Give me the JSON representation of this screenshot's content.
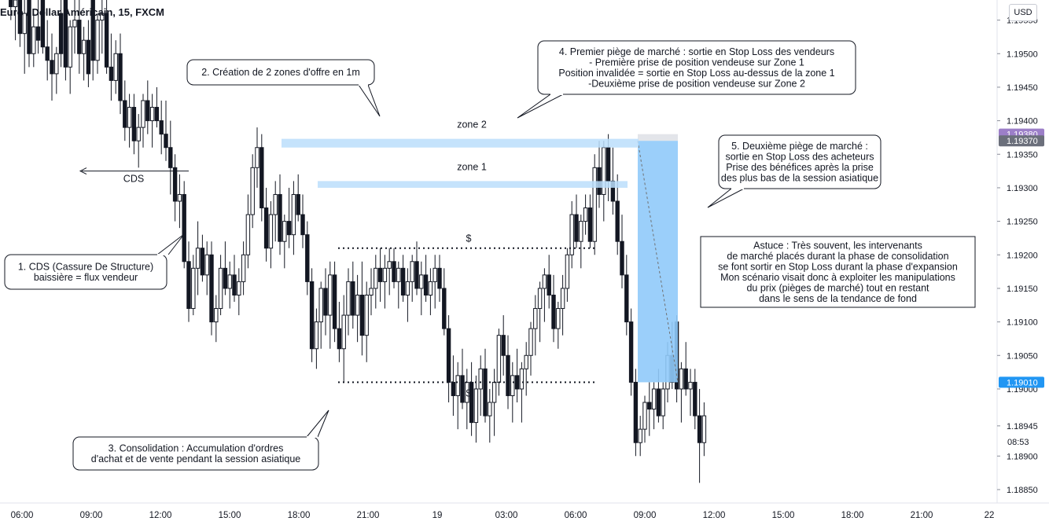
{
  "header": {
    "symbol_title": "Euro / Dollar Américain, 15, FXCM",
    "currency_button": "USD"
  },
  "countdown": "08:53",
  "chart_data": {
    "type": "candlestick",
    "y_axis": {
      "ticks": [
        "1.19550",
        "1.19500",
        "1.19450",
        "1.19400",
        "1.19350",
        "1.19300",
        "1.19250",
        "1.19200",
        "1.19150",
        "1.19100",
        "1.19050",
        "1.19000",
        "1.18945",
        "1.18900",
        "1.18850"
      ],
      "ylim": [
        1.1883,
        1.1958
      ]
    },
    "x_axis": {
      "ticks": [
        "06:00",
        "09:00",
        "12:00",
        "15:00",
        "18:00",
        "21:00",
        "19",
        "03:00",
        "06:00",
        "09:00",
        "12:00",
        "15:00",
        "18:00",
        "21:00",
        "22"
      ]
    },
    "price_tags": [
      {
        "value": "1.19380",
        "color": "#9c7fc8"
      },
      {
        "value": "1.19370",
        "color": "#6b6f7b"
      },
      {
        "value": "1.19010",
        "color": "#2196f3"
      }
    ],
    "candles": [
      [
        1.1961,
        1.1966,
        1.1958,
        1.196
      ],
      [
        1.196,
        1.1965,
        1.1955,
        1.1957
      ],
      [
        1.1957,
        1.1962,
        1.1952,
        1.1958
      ],
      [
        1.1958,
        1.1961,
        1.1951,
        1.1953
      ],
      [
        1.1953,
        1.1958,
        1.1947,
        1.1956
      ],
      [
        1.196,
        1.1962,
        1.1948,
        1.195
      ],
      [
        1.195,
        1.1956,
        1.1948,
        1.1954
      ],
      [
        1.1954,
        1.1959,
        1.195,
        1.1952
      ],
      [
        1.1958,
        1.196,
        1.195,
        1.1951
      ],
      [
        1.1951,
        1.1955,
        1.1946,
        1.1949
      ],
      [
        1.1949,
        1.1953,
        1.1943,
        1.1947
      ],
      [
        1.1947,
        1.1951,
        1.1944,
        1.195
      ],
      [
        1.1956,
        1.1962,
        1.1948,
        1.195
      ],
      [
        1.196,
        1.1963,
        1.1946,
        1.1948
      ],
      [
        1.1948,
        1.1955,
        1.1944,
        1.1954
      ],
      [
        1.1954,
        1.1958,
        1.195,
        1.1955
      ],
      [
        1.1955,
        1.1958,
        1.1947,
        1.195
      ],
      [
        1.195,
        1.1954,
        1.1946,
        1.1952
      ],
      [
        1.1952,
        1.1955,
        1.1945,
        1.1947
      ],
      [
        1.1965,
        1.1968,
        1.1946,
        1.1949
      ],
      [
        1.1949,
        1.1956,
        1.1947,
        1.1955
      ],
      [
        1.1955,
        1.1958,
        1.195,
        1.1956
      ],
      [
        1.1956,
        1.1959,
        1.1947,
        1.1948
      ],
      [
        1.1948,
        1.1953,
        1.1943,
        1.1946
      ],
      [
        1.1946,
        1.1952,
        1.1944,
        1.195
      ],
      [
        1.195,
        1.1953,
        1.1941,
        1.1943
      ],
      [
        1.1943,
        1.1946,
        1.1937,
        1.1939
      ],
      [
        1.1939,
        1.1944,
        1.1936,
        1.1942
      ],
      [
        1.1942,
        1.1944,
        1.1935,
        1.1937
      ],
      [
        1.1937,
        1.1941,
        1.1933,
        1.1939
      ],
      [
        1.1939,
        1.1944,
        1.1936,
        1.1943
      ],
      [
        1.1943,
        1.1946,
        1.1938,
        1.194
      ],
      [
        1.194,
        1.1944,
        1.1936,
        1.1942
      ],
      [
        1.1942,
        1.1945,
        1.1939,
        1.194
      ],
      [
        1.194,
        1.1943,
        1.1935,
        1.1938
      ],
      [
        1.1938,
        1.1943,
        1.1934,
        1.1936
      ],
      [
        1.1936,
        1.194,
        1.1929,
        1.1933
      ],
      [
        1.1933,
        1.1935,
        1.1925,
        1.1928
      ],
      [
        1.1928,
        1.1932,
        1.1924,
        1.1929
      ],
      [
        1.1929,
        1.1931,
        1.1918,
        1.1919
      ],
      [
        1.1919,
        1.1922,
        1.191,
        1.1912
      ],
      [
        1.1912,
        1.192,
        1.1911,
        1.1918
      ],
      [
        1.1918,
        1.1925,
        1.1914,
        1.1921
      ],
      [
        1.1921,
        1.1923,
        1.1916,
        1.1917
      ],
      [
        1.1917,
        1.1922,
        1.1914,
        1.192
      ],
      [
        1.192,
        1.1922,
        1.1908,
        1.191
      ],
      [
        1.191,
        1.1914,
        1.1907,
        1.1912
      ],
      [
        1.1912,
        1.192,
        1.1911,
        1.1918
      ],
      [
        1.1918,
        1.1922,
        1.1914,
        1.1915
      ],
      [
        1.1915,
        1.1919,
        1.1912,
        1.1917
      ],
      [
        1.1917,
        1.192,
        1.1913,
        1.1914
      ],
      [
        1.1914,
        1.1918,
        1.1911,
        1.1916
      ],
      [
        1.1916,
        1.1922,
        1.1914,
        1.192
      ],
      [
        1.192,
        1.1929,
        1.1918,
        1.1926
      ],
      [
        1.1926,
        1.1935,
        1.1924,
        1.1933
      ],
      [
        1.1933,
        1.1939,
        1.193,
        1.1936
      ],
      [
        1.1936,
        1.1938,
        1.1925,
        1.1927
      ],
      [
        1.1927,
        1.193,
        1.1919,
        1.1921
      ],
      [
        1.1921,
        1.1928,
        1.1918,
        1.1926
      ],
      [
        1.1926,
        1.1931,
        1.1922,
        1.1929
      ],
      [
        1.1929,
        1.1932,
        1.192,
        1.1922
      ],
      [
        1.1922,
        1.1926,
        1.1918,
        1.1925
      ],
      [
        1.1925,
        1.193,
        1.1921,
        1.1923
      ],
      [
        1.1923,
        1.1931,
        1.192,
        1.1929
      ],
      [
        1.1929,
        1.1932,
        1.1925,
        1.1926
      ],
      [
        1.1926,
        1.1929,
        1.1921,
        1.1923
      ],
      [
        1.1923,
        1.1925,
        1.1914,
        1.1916
      ],
      [
        1.1916,
        1.1918,
        1.1904,
        1.1906
      ],
      [
        1.1906,
        1.1912,
        1.1903,
        1.191
      ],
      [
        1.191,
        1.1916,
        1.1906,
        1.1915
      ],
      [
        1.1915,
        1.1918,
        1.1908,
        1.1911
      ],
      [
        1.1911,
        1.1919,
        1.1906,
        1.1917
      ],
      [
        1.1917,
        1.1919,
        1.1907,
        1.1909
      ],
      [
        1.1909,
        1.1913,
        1.1904,
        1.1906
      ],
      [
        1.1906,
        1.1914,
        1.1901,
        1.1911
      ],
      [
        1.1911,
        1.1918,
        1.1908,
        1.1916
      ],
      [
        1.1916,
        1.1919,
        1.1909,
        1.1911
      ],
      [
        1.1911,
        1.1917,
        1.1907,
        1.1914
      ],
      [
        1.1914,
        1.1919,
        1.1905,
        1.1908
      ],
      [
        1.1908,
        1.1916,
        1.1904,
        1.1914
      ],
      [
        1.1914,
        1.1918,
        1.1911,
        1.1915
      ],
      [
        1.1915,
        1.192,
        1.1912,
        1.1918
      ],
      [
        1.1918,
        1.1921,
        1.1913,
        1.1916
      ],
      [
        1.1916,
        1.192,
        1.1912,
        1.1918
      ],
      [
        1.1918,
        1.1921,
        1.1914,
        1.1919
      ],
      [
        1.1919,
        1.1921,
        1.1915,
        1.1916
      ],
      [
        1.1916,
        1.1919,
        1.1912,
        1.1918
      ],
      [
        1.1918,
        1.192,
        1.1913,
        1.1914
      ],
      [
        1.1914,
        1.1918,
        1.191,
        1.1916
      ],
      [
        1.1916,
        1.192,
        1.1913,
        1.1919
      ],
      [
        1.1919,
        1.1922,
        1.1914,
        1.1915
      ],
      [
        1.1915,
        1.1919,
        1.1911,
        1.1917
      ],
      [
        1.1917,
        1.192,
        1.1913,
        1.1914
      ],
      [
        1.1914,
        1.1918,
        1.1911,
        1.1916
      ],
      [
        1.1916,
        1.192,
        1.1912,
        1.1918
      ],
      [
        1.1918,
        1.192,
        1.1913,
        1.1915
      ],
      [
        1.1915,
        1.1918,
        1.1908,
        1.1909
      ],
      [
        1.1909,
        1.1911,
        1.1898,
        1.1901
      ],
      [
        1.1901,
        1.1905,
        1.1896,
        1.1899
      ],
      [
        1.1899,
        1.1904,
        1.1894,
        1.1902
      ],
      [
        1.1902,
        1.1906,
        1.1897,
        1.1898
      ],
      [
        1.1898,
        1.1903,
        1.1894,
        1.1901
      ],
      [
        1.1901,
        1.1904,
        1.1893,
        1.1895
      ],
      [
        1.1895,
        1.1902,
        1.1892,
        1.19
      ],
      [
        1.19,
        1.1905,
        1.1896,
        1.1903
      ],
      [
        1.1903,
        1.1906,
        1.1895,
        1.1896
      ],
      [
        1.1896,
        1.19,
        1.1892,
        1.1898
      ],
      [
        1.1898,
        1.1903,
        1.1893,
        1.1901
      ],
      [
        1.1901,
        1.1909,
        1.1899,
        1.1908
      ],
      [
        1.1908,
        1.1911,
        1.1902,
        1.1905
      ],
      [
        1.1905,
        1.1908,
        1.1897,
        1.1899
      ],
      [
        1.1899,
        1.1904,
        1.1895,
        1.1902
      ],
      [
        1.1902,
        1.1906,
        1.1898,
        1.19
      ],
      [
        1.19,
        1.1904,
        1.1895,
        1.1903
      ],
      [
        1.1903,
        1.1907,
        1.1899,
        1.1905
      ],
      [
        1.1905,
        1.191,
        1.1902,
        1.1909
      ],
      [
        1.1909,
        1.1914,
        1.1905,
        1.1912
      ],
      [
        1.1912,
        1.1916,
        1.1907,
        1.1915
      ],
      [
        1.1915,
        1.1918,
        1.191,
        1.1917
      ],
      [
        1.1917,
        1.192,
        1.1912,
        1.1914
      ],
      [
        1.1914,
        1.1917,
        1.1907,
        1.1909
      ],
      [
        1.1909,
        1.1913,
        1.1906,
        1.1912
      ],
      [
        1.1912,
        1.1917,
        1.1908,
        1.1915
      ],
      [
        1.1915,
        1.1921,
        1.1913,
        1.192
      ],
      [
        1.192,
        1.1928,
        1.1918,
        1.1926
      ],
      [
        1.1926,
        1.1929,
        1.1921,
        1.1922
      ],
      [
        1.1922,
        1.1926,
        1.1918,
        1.1925
      ],
      [
        1.1925,
        1.1929,
        1.1923,
        1.1927
      ],
      [
        1.1927,
        1.1929,
        1.1921,
        1.1922
      ],
      [
        1.1922,
        1.1935,
        1.192,
        1.1933
      ],
      [
        1.1933,
        1.1937,
        1.1927,
        1.1929
      ],
      [
        1.1929,
        1.1937,
        1.1925,
        1.1936
      ],
      [
        1.1936,
        1.1938,
        1.1928,
        1.1931
      ],
      [
        1.1931,
        1.1936,
        1.1926,
        1.1928
      ],
      [
        1.1928,
        1.1932,
        1.192,
        1.1922
      ],
      [
        1.1922,
        1.1926,
        1.1915,
        1.1917
      ],
      [
        1.1917,
        1.192,
        1.1908,
        1.191
      ],
      [
        1.191,
        1.1912,
        1.1899,
        1.1901
      ],
      [
        1.1901,
        1.1903,
        1.189,
        1.1892
      ],
      [
        1.1892,
        1.1896,
        1.189,
        1.1894
      ],
      [
        1.1894,
        1.1899,
        1.1892,
        1.1898
      ],
      [
        1.1898,
        1.1901,
        1.1893,
        1.1897
      ],
      [
        1.1897,
        1.1901,
        1.1894,
        1.19
      ],
      [
        1.19,
        1.1903,
        1.1895,
        1.1896
      ],
      [
        1.1896,
        1.1901,
        1.1894,
        1.19
      ],
      [
        1.19,
        1.1907,
        1.1898,
        1.1905
      ],
      [
        1.1905,
        1.191,
        1.19,
        1.1901
      ],
      [
        1.191,
        1.1911,
        1.1898,
        1.19
      ],
      [
        1.19,
        1.1904,
        1.1895,
        1.1903
      ],
      [
        1.1903,
        1.1907,
        1.1899,
        1.19
      ],
      [
        1.19,
        1.1903,
        1.1896,
        1.1901
      ],
      [
        1.1901,
        1.1903,
        1.1894,
        1.1896
      ],
      [
        1.1896,
        1.19,
        1.1886,
        1.1892
      ],
      [
        1.1892,
        1.1898,
        1.189,
        1.1896
      ]
    ]
  },
  "zones": [
    {
      "label": "zone 2",
      "top": 1.19373,
      "bottom": 1.1936
    },
    {
      "label": "zone 1",
      "top": 1.1931,
      "bottom": 1.193
    }
  ],
  "liquidity_levels": [
    {
      "label": "$",
      "price": 1.1921
    },
    {
      "label": "$",
      "price": 1.1901
    }
  ],
  "cds_label": "CDS",
  "callouts": {
    "c1": [
      "1. CDS (Cassure De Structure)",
      "baissière = flux vendeur"
    ],
    "c2": [
      "2. Création de 2 zones d'offre en 1m"
    ],
    "c3": [
      "3. Consolidation : Accumulation d'ordres",
      "d'achat et de vente pendant la session asiatique"
    ],
    "c4": [
      "4. Premier piège de marché : sortie en Stop Loss des vendeurs",
      "- Première prise de position vendeuse sur Zone 1",
      "Position invalidée = sortie en Stop Loss au-dessus de la zone 1",
      "-Deuxième prise de position vendeuse sur Zone 2"
    ],
    "c5": [
      "5. Deuxième piège de marché :",
      "sortie en Stop Loss des acheteurs",
      "Prise des bénéfices après la prise",
      "des plus bas de la session asiatique"
    ],
    "tip": [
      "Astuce : Très souvent, les intervenants",
      "de marché placés durant la phase de consolidation",
      "se font sortir en Stop Loss durant la phase d'expansion",
      "Mon scénario visait donc à exploiter les manipulations",
      "du prix (pièges de marché) tout en restant",
      "dans le sens de la tendance de fond"
    ]
  }
}
